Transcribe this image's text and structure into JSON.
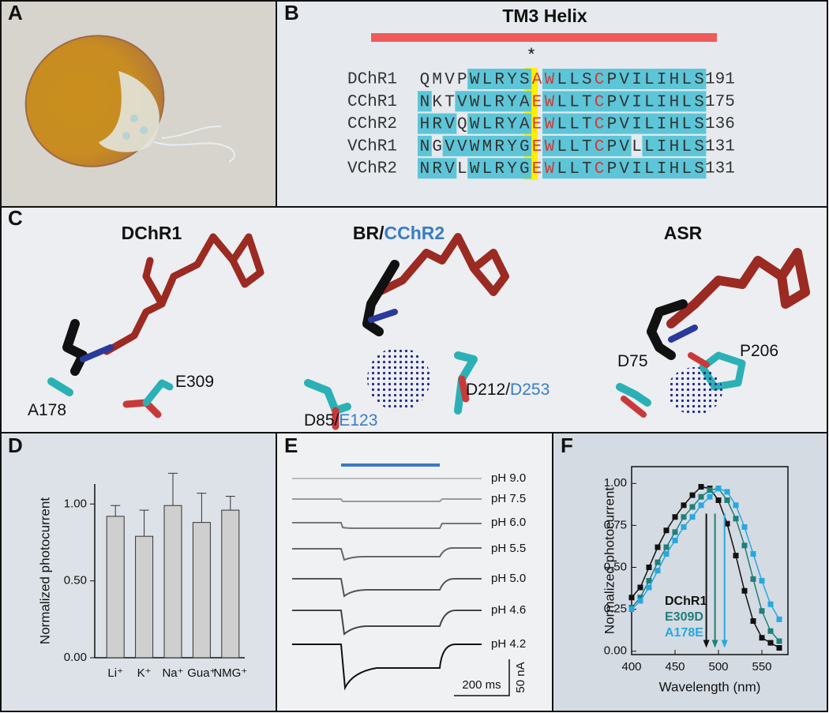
{
  "panel_labels": [
    "A",
    "B",
    "C",
    "D",
    "E",
    "F"
  ],
  "alignment": {
    "title": "TM3 Helix",
    "marker": "*",
    "rows": [
      {
        "name": "DChR1",
        "sequence": "QMVPWLRYSAWLLSCPVILIHLS",
        "number": 191
      },
      {
        "name": "CChR1",
        "sequence": "NKTVWLRYAEWLLTCPVILIHLS",
        "number": 175
      },
      {
        "name": "CChR2",
        "sequence": "HRVQWLRYAEWLLTCPVILIHLS",
        "number": 136
      },
      {
        "name": "VChR1",
        "sequence": "NGVVWMRYGEWLLTCPVLLIHLS",
        "number": 131
      },
      {
        "name": "VChR2",
        "sequence": "NRVLWLRYGEWLLTCPVILIHLS",
        "number": 131
      }
    ]
  },
  "structures": [
    {
      "title": [
        "DChR1"
      ],
      "residues": [
        [
          "A178"
        ],
        [
          "E309"
        ]
      ]
    },
    {
      "title": [
        "BR/",
        "CChR2"
      ],
      "residues": [
        [
          "D85/",
          "E123"
        ],
        [
          "D212/",
          "D253"
        ]
      ]
    },
    {
      "title": [
        "ASR"
      ],
      "residues": [
        [
          "D75"
        ],
        [
          "P206"
        ]
      ]
    }
  ],
  "traces": {
    "labels": [
      "pH 9.0",
      "pH 7.5",
      "pH 6.0",
      "pH 5.5",
      "pH 5.0",
      "pH 4.6",
      "pH 4.2"
    ],
    "time_scale": "200 ms",
    "current_scale": "50 nA"
  },
  "chart_data": [
    {
      "type": "bar",
      "ylabel": "Normalized photocurrent",
      "categories": [
        "Li⁺",
        "K⁺",
        "Na⁺",
        "Gua⁺",
        "NMG⁺"
      ],
      "values": [
        0.92,
        0.79,
        0.99,
        0.88,
        0.96
      ],
      "errors": [
        0.07,
        0.17,
        0.21,
        0.19,
        0.09
      ],
      "color": "#cfcfcf",
      "ylim": [
        0,
        1.13
      ],
      "yticks": [
        {
          "value": 0,
          "label": "0.00"
        },
        {
          "value": 0.5,
          "label": "0.50"
        },
        {
          "value": 1,
          "label": "1.00"
        }
      ]
    },
    {
      "type": "line",
      "xlabel": "Wavelength (nm)",
      "ylabel": "Normalized photocurrent",
      "x": [
        400,
        410,
        420,
        430,
        440,
        450,
        460,
        470,
        480,
        490,
        500,
        510,
        520,
        530,
        540,
        550,
        560,
        570
      ],
      "series": [
        {
          "name": "DChR1",
          "color": "#111111",
          "peak": 486,
          "values": [
            0.32,
            0.38,
            0.5,
            0.62,
            0.72,
            0.8,
            0.87,
            0.93,
            0.98,
            0.97,
            0.9,
            0.76,
            0.57,
            0.36,
            0.18,
            0.08,
            0.05,
            0.02
          ]
        },
        {
          "name": "E309D",
          "color": "#1f7f7a",
          "peak": 496,
          "values": [
            0.26,
            0.32,
            0.42,
            0.53,
            0.62,
            0.71,
            0.8,
            0.86,
            0.92,
            0.96,
            0.97,
            0.9,
            0.79,
            0.63,
            0.43,
            0.24,
            0.12,
            0.06
          ]
        },
        {
          "name": "A178E",
          "color": "#27a8e0",
          "peak": 507,
          "values": [
            0.25,
            0.3,
            0.38,
            0.48,
            0.58,
            0.66,
            0.74,
            0.8,
            0.87,
            0.92,
            0.97,
            0.95,
            0.87,
            0.74,
            0.58,
            0.42,
            0.28,
            0.19
          ]
        }
      ],
      "xlim": [
        400,
        580
      ],
      "xticks": [
        400,
        450,
        500,
        550
      ],
      "ylim": [
        -0.02,
        1.1
      ],
      "yticks": [
        {
          "value": 0,
          "label": "0.00"
        },
        0.25,
        {
          "value": 0.5,
          "label": "0.50"
        },
        0.75,
        {
          "value": 1,
          "label": "1.00"
        }
      ]
    }
  ]
}
